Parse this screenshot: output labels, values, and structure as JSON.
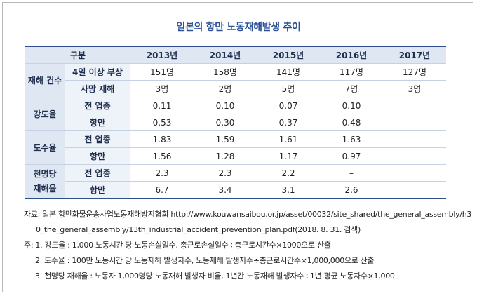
{
  "title": "일본의 항만 노동재해발생 추이",
  "table": {
    "header": {
      "category": "구분",
      "years": [
        "2013년",
        "2014년",
        "2015년",
        "2016년",
        "2017년"
      ]
    },
    "groups": [
      {
        "name": "재해 건수",
        "rows": [
          {
            "label": "4일 이상 부상",
            "values": [
              "151명",
              "158명",
              "141명",
              "117명",
              "127명"
            ]
          },
          {
            "label": "사망 재해",
            "values": [
              "3명",
              "2명",
              "5명",
              "7명",
              "3명"
            ]
          }
        ]
      },
      {
        "name": "강도율",
        "rows": [
          {
            "label": "전 업종",
            "values": [
              "0.11",
              "0.10",
              "0.07",
              "0.10",
              ""
            ]
          },
          {
            "label": "항만",
            "values": [
              "0.53",
              "0.30",
              "0.37",
              "0.48",
              ""
            ]
          }
        ]
      },
      {
        "name": "도수율",
        "rows": [
          {
            "label": "전 업종",
            "values": [
              "1.83",
              "1.59",
              "1.61",
              "1.63",
              ""
            ]
          },
          {
            "label": "항만",
            "values": [
              "1.56",
              "1.28",
              "1.17",
              "0.97",
              ""
            ]
          }
        ]
      },
      {
        "name_line1": "천명당",
        "name_line2": "재해율",
        "rows": [
          {
            "label": "전 업종",
            "values": [
              "2.3",
              "2.3",
              "2.2",
              "–",
              ""
            ]
          },
          {
            "label": "항만",
            "values": [
              "6.7",
              "3.4",
              "3.1",
              "2.6",
              ""
            ]
          }
        ]
      }
    ]
  },
  "notes": {
    "source_line1": "자료: 일본 항만화물운송사업노동재해방지협회 http://www.kouwansaibou.or.jp/asset/00032/site_shared/the_general_assembly/h3",
    "source_line2": "0_the_general_assembly/13th_industrial_accident_prevention_plan.pdf(2018. 8. 31. 검색)",
    "note1": "주: 1. 강도율 : 1,000 노동시간 당 노동손실일수, 총근로손실일수÷총근로시간수×1000으로 산출",
    "note2": "2. 도수율 : 100만 노동시간 당 노동재해 발생자수, 노동재해 발생자수÷총근로시간수×1,000,000으로 산출",
    "note3": "3. 천명당 재해율 : 노동자 1,000명당 노동재해 발생자 비율, 1년간 노동재해 발생자수÷1년 평균 노동자수×1,000"
  }
}
